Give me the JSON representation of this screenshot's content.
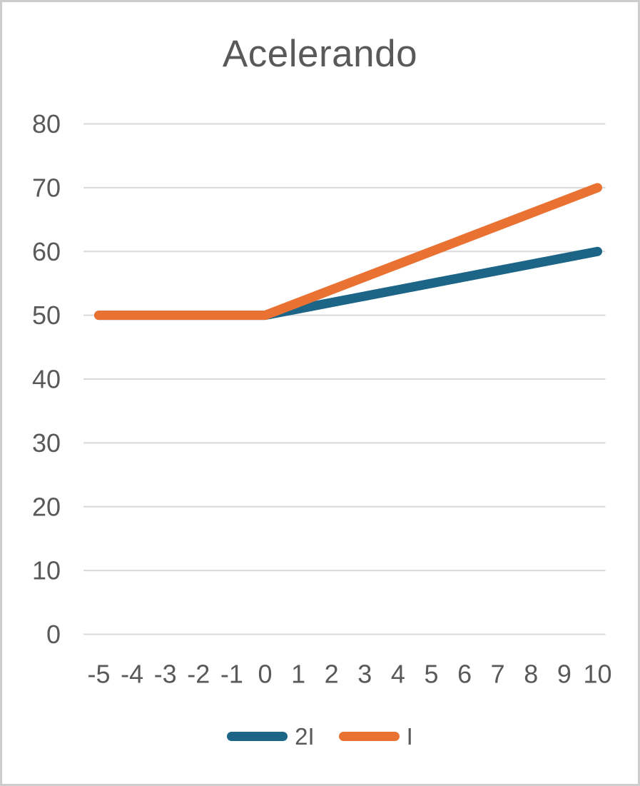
{
  "chart_data": {
    "type": "line",
    "title": "Acelerando",
    "xlabel": "",
    "ylabel": "",
    "x": [
      -5,
      -4,
      -3,
      -2,
      -1,
      0,
      1,
      2,
      3,
      4,
      5,
      6,
      7,
      8,
      9,
      10
    ],
    "x_tick_labels": [
      "-5",
      "-4",
      "-3",
      "-2",
      "-1",
      "0",
      "1",
      "2",
      "3",
      "4",
      "5",
      "6",
      "7",
      "8",
      "9",
      "10"
    ],
    "y_ticks": [
      0,
      10,
      20,
      30,
      40,
      50,
      60,
      70,
      80
    ],
    "xlim": [
      -5,
      10
    ],
    "ylim": [
      0,
      80
    ],
    "grid": "horizontal",
    "legend_position": "bottom",
    "series": [
      {
        "name": "2I",
        "color": "#1C6587",
        "values": [
          50,
          50,
          50,
          50,
          50,
          50,
          51,
          52,
          53,
          54,
          55,
          56,
          57,
          58,
          59,
          60
        ]
      },
      {
        "name": "I",
        "color": "#E97132",
        "values": [
          50,
          50,
          50,
          50,
          50,
          50,
          52,
          54,
          56,
          58,
          60,
          62,
          64,
          66,
          68,
          70
        ]
      }
    ],
    "colors": {
      "text": "#595959",
      "gridline": "#D9D9D9",
      "frame_border": "#CDCDCD",
      "background": "#FFFFFF"
    }
  }
}
